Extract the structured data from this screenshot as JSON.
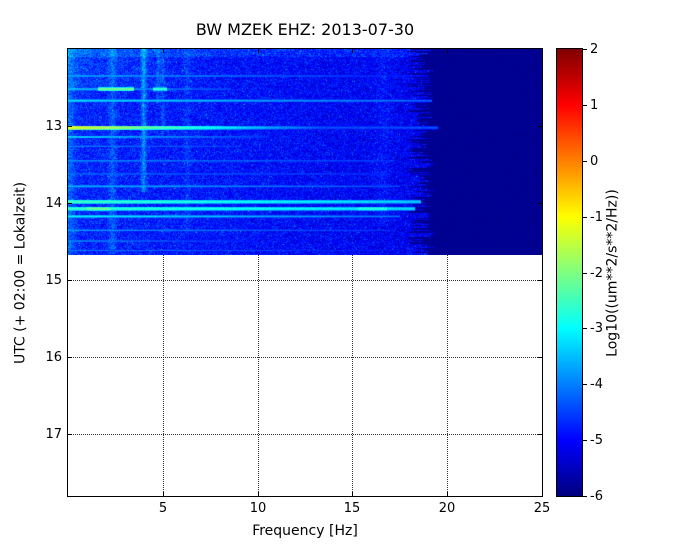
{
  "chart_data": {
    "type": "heatmap",
    "subtype": "spectrogram",
    "title": "BW MZEK EHZ: 2013-07-30",
    "xlabel": "Frequency [Hz]",
    "ylabel": "UTC (+ 02:00 = Lokalzeit)",
    "x_range": [
      0,
      25
    ],
    "x_ticks": [
      5,
      10,
      15,
      20,
      25
    ],
    "y_range": [
      12.0,
      17.8
    ],
    "y_ticks": [
      13,
      14,
      15,
      16,
      17
    ],
    "grid": true,
    "colormap": "jet",
    "colorbar": {
      "label": "Log10((um**2/s**2/Hz))",
      "ticks": [
        2,
        1,
        0,
        -1,
        -2,
        -3,
        -4,
        -5,
        -6
      ],
      "value_range": [
        -6,
        2
      ]
    },
    "data_coverage": {
      "time_start": 12.0,
      "time_end": 14.67,
      "freq_cutoff_hz": 18.2
    },
    "background_level": -4.7,
    "no_data_level": -5.92,
    "events": [
      {
        "time": 12.35,
        "v0": -3.6,
        "slope": -0.06,
        "fend": 19.0,
        "half": 0.018
      },
      {
        "time": 12.52,
        "v0": -3.4,
        "slope": -0.12,
        "fend": 8.5,
        "half": 0.022,
        "blobs": [
          {
            "f0": 1.6,
            "f1": 3.5,
            "v": -2.0
          },
          {
            "f0": 4.5,
            "f1": 5.2,
            "v": -2.5
          }
        ]
      },
      {
        "time": 12.67,
        "v0": -3.2,
        "slope": -0.05,
        "fend": 19.2,
        "half": 0.02
      },
      {
        "time": 13.02,
        "v0": -1.1,
        "slope": -0.24,
        "fend": 19.5,
        "half": 0.028,
        "floor": -4.35
      },
      {
        "time": 13.14,
        "v0": -3.2,
        "slope": -0.12,
        "fend": 10.5,
        "half": 0.018
      },
      {
        "time": 13.26,
        "v0": -3.9,
        "slope": -0.06,
        "fend": 9.0,
        "half": 0.015
      },
      {
        "time": 13.45,
        "v0": -3.8,
        "slope": -0.04,
        "fend": 17.2,
        "half": 0.016
      },
      {
        "time": 13.62,
        "v0": -4.0,
        "slope": -0.03,
        "fend": 17.0,
        "half": 0.014
      },
      {
        "time": 13.78,
        "v0": -3.5,
        "slope": -0.05,
        "fend": 17.5,
        "half": 0.018
      },
      {
        "time": 13.98,
        "v0": -2.4,
        "slope": -0.05,
        "fend": 18.6,
        "half": 0.026
      },
      {
        "time": 14.07,
        "v0": -2.5,
        "slope": -0.04,
        "fend": 18.3,
        "half": 0.026,
        "blobs": [
          {
            "f0": 1.0,
            "f1": 2.2,
            "v": -2.1
          },
          {
            "f0": 15.3,
            "f1": 16.8,
            "v": -2.7
          }
        ]
      },
      {
        "time": 14.17,
        "v0": -3.0,
        "slope": -0.06,
        "fend": 17.5,
        "half": 0.018
      },
      {
        "time": 14.35,
        "v0": -3.7,
        "slope": -0.05,
        "fend": 17.0,
        "half": 0.016
      },
      {
        "time": 14.49,
        "v0": -3.8,
        "slope": -0.09,
        "fend": 10.0,
        "half": 0.016
      },
      {
        "time": 14.61,
        "v0": -4.0,
        "slope": -0.05,
        "fend": 17.0,
        "half": 0.014
      }
    ],
    "stripes": [
      {
        "f": 2.35,
        "w": 0.3,
        "boost": 0.5,
        "t0": 12.0,
        "t1": 14.66
      },
      {
        "f": 4.0,
        "w": 0.22,
        "boost": 1.0,
        "t0": 12.0,
        "t1": 13.85
      },
      {
        "f": 4.75,
        "w": 0.15,
        "boost": 0.6,
        "t0": 12.0,
        "t1": 12.7
      },
      {
        "f": 5.0,
        "w": 0.18,
        "boost": 0.45,
        "t0": 12.1,
        "t1": 13.1
      },
      {
        "f": 6.3,
        "w": 0.25,
        "boost": 0.3,
        "t0": 12.0,
        "t1": 14.4
      },
      {
        "f": 16.6,
        "w": 0.6,
        "boost": 0.22,
        "t0": 12.0,
        "t1": 14.3
      }
    ]
  }
}
